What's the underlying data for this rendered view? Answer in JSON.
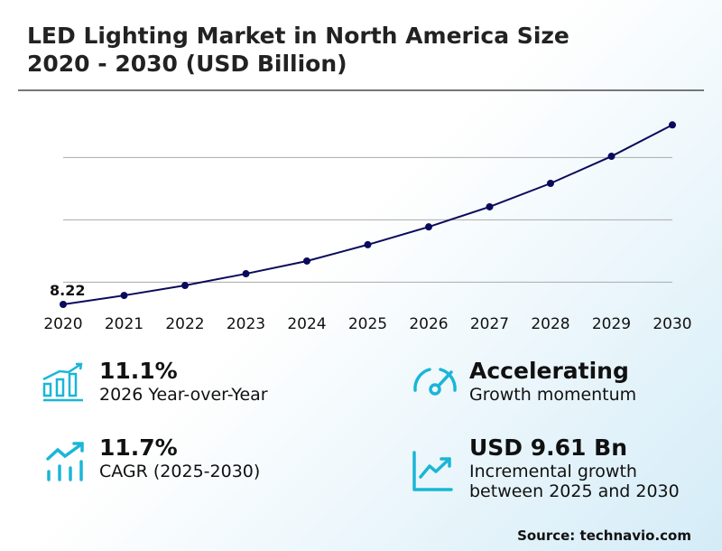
{
  "title_line1": "LED Lighting Market in North America Size",
  "title_line2": "2020 - 2030 (USD Billion)",
  "chart_data": {
    "type": "line",
    "title": "LED Lighting Market in North America Size 2020 - 2030 (USD Billion)",
    "categories": [
      "2020",
      "2021",
      "2022",
      "2023",
      "2024",
      "2025",
      "2026",
      "2027",
      "2028",
      "2029",
      "2030"
    ],
    "values": [
      8.22,
      8.94,
      9.74,
      10.68,
      11.7,
      13.01,
      14.44,
      16.05,
      17.93,
      20.1,
      22.62
    ],
    "data_labels": {
      "2020": "8.22"
    },
    "ylim": [
      5,
      24
    ],
    "gridlines": [
      10,
      15,
      20
    ],
    "grid": true,
    "line_color": "#0a0a5c"
  },
  "stats": [
    {
      "value": "11.1%",
      "label": "2026 Year-over-Year",
      "icon": "bar-chart-growth-icon"
    },
    {
      "value": "Accelerating",
      "label": "Growth momentum",
      "icon": "speedometer-icon"
    },
    {
      "value": "11.7%",
      "label": "CAGR (2025-2030)",
      "icon": "trend-up-bars-icon"
    },
    {
      "value": "USD 9.61 Bn",
      "label": "Incremental growth",
      "label2": "between 2025 and 2030",
      "icon": "line-chart-up-icon"
    }
  ],
  "accent_color": "#1ab6d6",
  "source": "Source: technavio.com"
}
